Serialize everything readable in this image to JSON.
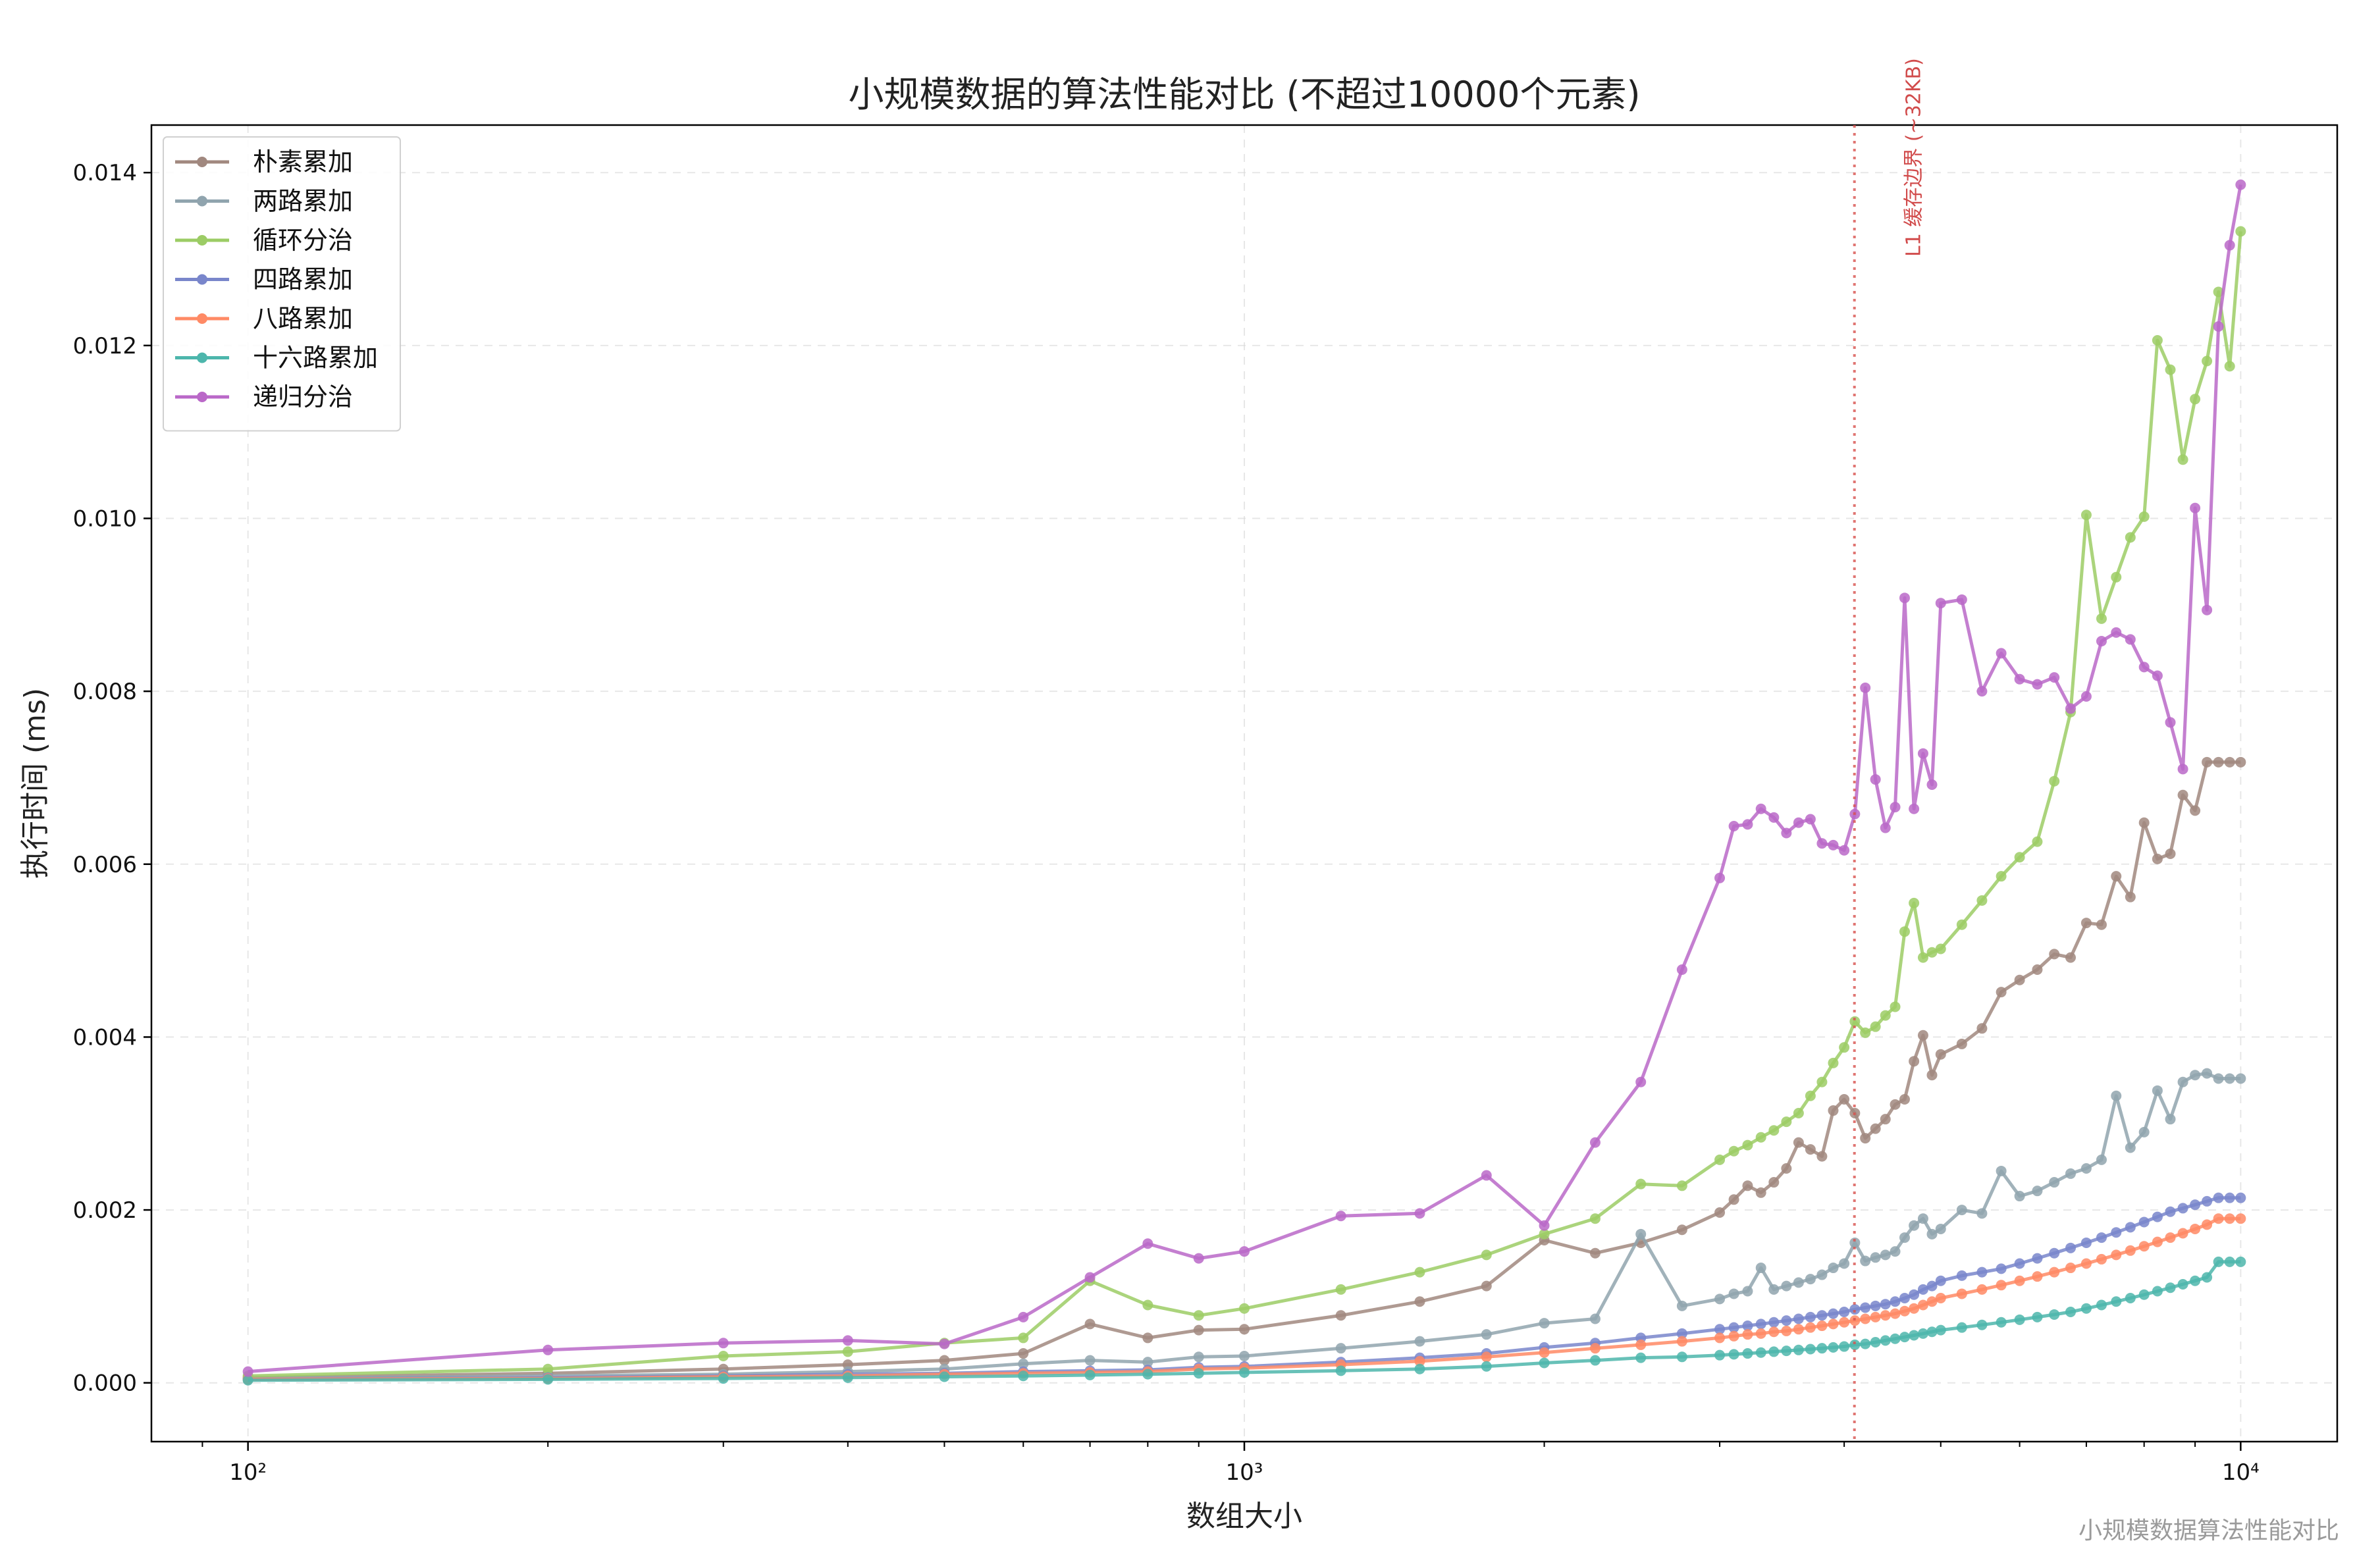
{
  "chart_data": {
    "type": "line",
    "title": "小规模数据的算法性能对比 (不超过10000个元素)",
    "xlabel": "数组大小",
    "ylabel": "执行时间 (ms)",
    "xscale": "log",
    "xlim": [
      80,
      12500
    ],
    "ylim": [
      -0.00068,
      0.01455
    ],
    "grid": true,
    "legend": "top-left",
    "xticks": [
      {
        "value": 100,
        "label": "10²"
      },
      {
        "value": 1000,
        "label": "10³"
      },
      {
        "value": 10000,
        "label": "10⁴"
      }
    ],
    "yticks": [
      {
        "value": 0,
        "label": "0.000"
      },
      {
        "value": 0.002,
        "label": "0.002"
      },
      {
        "value": 0.004,
        "label": "0.004"
      },
      {
        "value": 0.006,
        "label": "0.006"
      },
      {
        "value": 0.008,
        "label": "0.008"
      },
      {
        "value": 0.01,
        "label": "0.010"
      },
      {
        "value": 0.012,
        "label": "0.012"
      },
      {
        "value": 0.014,
        "label": "0.014"
      }
    ],
    "annotation": {
      "x": 4096,
      "text": "L1 缓存边界 (~32KB)",
      "color": "#d9534f"
    },
    "x": [
      100,
      200,
      300,
      400,
      500,
      600,
      700,
      800,
      900,
      1000,
      1250,
      1500,
      1750,
      2000,
      2250,
      2500,
      2750,
      3000,
      3100,
      3200,
      3300,
      3400,
      3500,
      3600,
      3700,
      3800,
      3900,
      4000,
      4100,
      4200,
      4300,
      4400,
      4500,
      4600,
      4700,
      4800,
      4900,
      5000,
      5250,
      5500,
      5750,
      6000,
      6250,
      6500,
      6750,
      7000,
      7250,
      7500,
      7750,
      8000,
      8250,
      8500,
      8750,
      9000,
      9250,
      9500,
      9750,
      10000
    ],
    "series": [
      {
        "name": "朴素累加",
        "color": "#a1887f",
        "values": [
          6e-05,
          0.00011,
          0.00016,
          0.00021,
          0.00026,
          0.00034,
          0.00068,
          0.00052,
          0.00061,
          0.00062,
          0.00078,
          0.00094,
          0.00112,
          0.00165,
          0.0015,
          0.00162,
          0.00177,
          0.00197,
          0.00212,
          0.00228,
          0.0022,
          0.00232,
          0.00248,
          0.00278,
          0.0027,
          0.00262,
          0.00315,
          0.00328,
          0.00312,
          0.00283,
          0.00294,
          0.00305,
          0.00322,
          0.00328,
          0.00372,
          0.00402,
          0.00356,
          0.0038,
          0.00392,
          0.0041,
          0.00452,
          0.00466,
          0.00478,
          0.00496,
          0.00492,
          0.00532,
          0.0053,
          0.00586,
          0.00562,
          0.00648,
          0.00606,
          0.00612,
          0.0068,
          0.00662,
          0.00718,
          0.00718,
          0.00718,
          0.00718
        ]
      },
      {
        "name": "两路累加",
        "color": "#90a4ae",
        "values": [
          5e-05,
          8e-05,
          0.0001,
          0.00013,
          0.00016,
          0.00022,
          0.00026,
          0.00024,
          0.0003,
          0.00031,
          0.0004,
          0.00048,
          0.00056,
          0.00069,
          0.00074,
          0.00172,
          0.00089,
          0.00097,
          0.00103,
          0.00106,
          0.00133,
          0.00108,
          0.00112,
          0.00116,
          0.0012,
          0.00125,
          0.00133,
          0.00138,
          0.00162,
          0.00141,
          0.00145,
          0.00148,
          0.00152,
          0.00168,
          0.00182,
          0.0019,
          0.00172,
          0.00178,
          0.002,
          0.00196,
          0.00245,
          0.00216,
          0.00222,
          0.00232,
          0.00242,
          0.00248,
          0.00258,
          0.00332,
          0.00272,
          0.0029,
          0.00338,
          0.00305,
          0.00348,
          0.00356,
          0.00358,
          0.00352,
          0.00352,
          0.00352
        ]
      },
      {
        "name": "循环分治",
        "color": "#9ccc65",
        "values": [
          8e-05,
          0.00016,
          0.00031,
          0.00036,
          0.00046,
          0.00052,
          0.00118,
          0.0009,
          0.00078,
          0.00086,
          0.00108,
          0.00128,
          0.00148,
          0.00172,
          0.0019,
          0.0023,
          0.00228,
          0.00258,
          0.00268,
          0.00275,
          0.00284,
          0.00292,
          0.00302,
          0.00312,
          0.00332,
          0.00348,
          0.0037,
          0.00388,
          0.00418,
          0.00405,
          0.00412,
          0.00425,
          0.00435,
          0.00522,
          0.00555,
          0.00492,
          0.00498,
          0.00502,
          0.0053,
          0.00558,
          0.00586,
          0.00608,
          0.00626,
          0.00696,
          0.00776,
          0.01004,
          0.00884,
          0.00932,
          0.00978,
          0.01002,
          0.01206,
          0.01172,
          0.01068,
          0.01138,
          0.01182,
          0.01262,
          0.01176,
          0.01332
        ]
      },
      {
        "name": "四路累加",
        "color": "#7986cb",
        "values": [
          4e-05,
          6e-05,
          8e-05,
          0.0001,
          0.00011,
          0.00013,
          0.00014,
          0.00015,
          0.00018,
          0.00019,
          0.00024,
          0.00029,
          0.00034,
          0.00041,
          0.00046,
          0.00052,
          0.00057,
          0.00062,
          0.00064,
          0.00066,
          0.00068,
          0.0007,
          0.00072,
          0.00074,
          0.00076,
          0.00078,
          0.0008,
          0.00082,
          0.00085,
          0.00087,
          0.00089,
          0.00091,
          0.00094,
          0.00098,
          0.00102,
          0.00108,
          0.00112,
          0.00118,
          0.00124,
          0.00128,
          0.00132,
          0.00138,
          0.00144,
          0.0015,
          0.00156,
          0.00162,
          0.00168,
          0.00174,
          0.0018,
          0.00186,
          0.00192,
          0.00198,
          0.00202,
          0.00206,
          0.0021,
          0.00214,
          0.00214,
          0.00214
        ]
      },
      {
        "name": "八路累加",
        "color": "#ff8a65",
        "values": [
          4e-05,
          5e-05,
          7e-05,
          8e-05,
          0.0001,
          0.00011,
          0.00012,
          0.00013,
          0.00016,
          0.00017,
          0.00021,
          0.00025,
          0.0003,
          0.00035,
          0.0004,
          0.00044,
          0.00048,
          0.00052,
          0.00054,
          0.00056,
          0.00057,
          0.00059,
          0.0006,
          0.00062,
          0.00064,
          0.00066,
          0.00068,
          0.0007,
          0.00072,
          0.00074,
          0.00076,
          0.00078,
          0.0008,
          0.00083,
          0.00086,
          0.0009,
          0.00094,
          0.00098,
          0.00103,
          0.00108,
          0.00113,
          0.00118,
          0.00123,
          0.00128,
          0.00133,
          0.00138,
          0.00143,
          0.00148,
          0.00153,
          0.00158,
          0.00163,
          0.00168,
          0.00173,
          0.00178,
          0.00183,
          0.0019,
          0.0019,
          0.0019
        ]
      },
      {
        "name": "十六路累加",
        "color": "#4db6ac",
        "values": [
          3e-05,
          4e-05,
          5e-05,
          6e-05,
          7e-05,
          8e-05,
          9e-05,
          0.0001,
          0.00011,
          0.00012,
          0.00014,
          0.00016,
          0.00019,
          0.00023,
          0.00026,
          0.00029,
          0.0003,
          0.00032,
          0.00033,
          0.00034,
          0.00035,
          0.00036,
          0.00037,
          0.00038,
          0.00039,
          0.0004,
          0.00041,
          0.00042,
          0.00044,
          0.00045,
          0.00047,
          0.00049,
          0.00051,
          0.00053,
          0.00055,
          0.00057,
          0.00059,
          0.00061,
          0.00064,
          0.00067,
          0.0007,
          0.00073,
          0.00076,
          0.00079,
          0.00082,
          0.00086,
          0.0009,
          0.00094,
          0.00098,
          0.00102,
          0.00106,
          0.0011,
          0.00114,
          0.00118,
          0.00122,
          0.0014,
          0.0014,
          0.0014
        ]
      },
      {
        "name": "递归分治",
        "color": "#ba68c8",
        "values": [
          0.00013,
          0.00038,
          0.00046,
          0.00049,
          0.00045,
          0.00076,
          0.00122,
          0.00161,
          0.00144,
          0.00152,
          0.00193,
          0.00196,
          0.0024,
          0.00182,
          0.00278,
          0.00348,
          0.00478,
          0.00584,
          0.00644,
          0.00646,
          0.00664,
          0.00654,
          0.00636,
          0.00648,
          0.00652,
          0.00624,
          0.00622,
          0.00616,
          0.00658,
          0.00804,
          0.00698,
          0.00642,
          0.00666,
          0.00908,
          0.00664,
          0.00728,
          0.00692,
          0.00902,
          0.00906,
          0.008,
          0.00844,
          0.00814,
          0.00808,
          0.00816,
          0.0078,
          0.00794,
          0.00858,
          0.00868,
          0.0086,
          0.00828,
          0.00818,
          0.00764,
          0.0071,
          0.01012,
          0.00894,
          0.01222,
          0.01316,
          0.01386
        ]
      }
    ]
  },
  "watermark": "小规模数据算法性能对比"
}
